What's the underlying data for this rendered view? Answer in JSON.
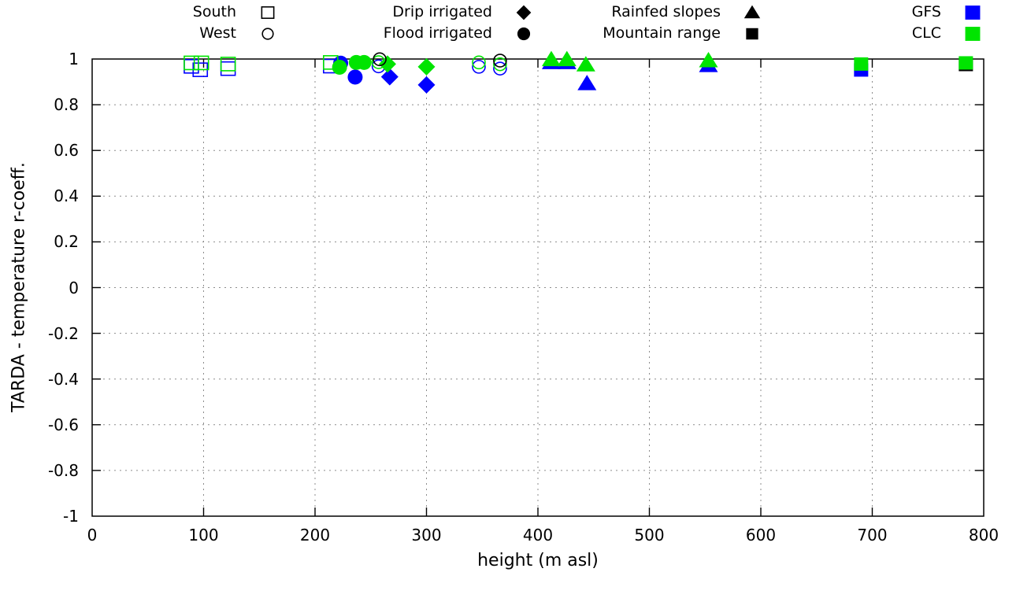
{
  "legend": {
    "columns": [
      {
        "rows": [
          {
            "label": "South",
            "marker": "square-open",
            "color": "#000000"
          },
          {
            "label": "West",
            "marker": "circle-open",
            "color": "#000000"
          }
        ]
      },
      {
        "rows": [
          {
            "label": "Drip irrigated",
            "marker": "diamond-filled",
            "color": "#000000"
          },
          {
            "label": "Flood irrigated",
            "marker": "circle-filled",
            "color": "#000000"
          }
        ]
      },
      {
        "rows": [
          {
            "label": "Rainfed slopes",
            "marker": "triangle-filled",
            "color": "#000000"
          },
          {
            "label": "Mountain range",
            "marker": "square-filled",
            "color": "#000000"
          }
        ]
      },
      {
        "rows": [
          {
            "label": "GFS",
            "marker": "square-filled",
            "color": "#0000ff"
          },
          {
            "label": "CLC",
            "marker": "square-filled",
            "color": "#00e400"
          }
        ]
      }
    ]
  },
  "chart_data": {
    "type": "scatter",
    "title": "",
    "xlabel": "height (m asl)",
    "ylabel": "TARDA - temperature r-coeff.",
    "xlim": [
      0,
      800
    ],
    "ylim": [
      -1,
      1
    ],
    "xticks": [
      0,
      100,
      200,
      300,
      400,
      500,
      600,
      700,
      800
    ],
    "yticks": [
      1,
      0.8,
      0.6,
      0.4,
      0.2,
      0,
      -0.2,
      -0.4,
      -0.6,
      -0.8,
      -1
    ],
    "ytick_labels": [
      "1",
      "0.8",
      "0.6",
      "0.4",
      "0.2",
      "0",
      "-0.2",
      "-0.4",
      "-0.6",
      "-0.8",
      "-1"
    ],
    "grid": true,
    "legend_position": "top",
    "colors": {
      "GFS": "#0000ff",
      "CLC": "#00e400",
      "overlap": "#000000"
    },
    "series": [
      {
        "name": "South",
        "marker": "square-open",
        "points": [
          {
            "x": 89,
            "y": 0.983,
            "model": "CLC"
          },
          {
            "x": 98,
            "y": 0.983,
            "model": "CLC"
          },
          {
            "x": 122,
            "y": 0.978,
            "model": "CLC"
          },
          {
            "x": 214,
            "y": 0.985,
            "model": "CLC"
          },
          {
            "x": 89,
            "y": 0.968,
            "model": "GFS"
          },
          {
            "x": 97,
            "y": 0.953,
            "model": "GFS"
          },
          {
            "x": 122,
            "y": 0.958,
            "model": "GFS"
          },
          {
            "x": 214,
            "y": 0.969,
            "model": "GFS"
          }
        ]
      },
      {
        "name": "West",
        "marker": "circle-open",
        "points": [
          {
            "x": 257,
            "y": 0.986,
            "model": "CLC"
          },
          {
            "x": 347,
            "y": 0.985,
            "model": "CLC"
          },
          {
            "x": 366,
            "y": 0.977,
            "model": "CLC"
          },
          {
            "x": 257,
            "y": 0.968,
            "model": "GFS"
          },
          {
            "x": 347,
            "y": 0.966,
            "model": "GFS"
          },
          {
            "x": 366,
            "y": 0.958,
            "model": "GFS"
          },
          {
            "x": 258,
            "y": 0.999,
            "model": "overlap",
            "z": 3
          },
          {
            "x": 366,
            "y": 0.993,
            "model": "overlap",
            "z": 3
          }
        ]
      },
      {
        "name": "Drip irrigated",
        "marker": "diamond-filled",
        "points": [
          {
            "x": 265,
            "y": 0.978,
            "model": "CLC"
          },
          {
            "x": 300,
            "y": 0.966,
            "model": "CLC"
          },
          {
            "x": 267,
            "y": 0.922,
            "model": "GFS"
          },
          {
            "x": 300,
            "y": 0.887,
            "model": "GFS"
          }
        ]
      },
      {
        "name": "Flood irrigated",
        "marker": "circle-filled",
        "points": [
          {
            "x": 222,
            "y": 0.964,
            "model": "CLC"
          },
          {
            "x": 237,
            "y": 0.985,
            "model": "CLC"
          },
          {
            "x": 244,
            "y": 0.985,
            "model": "CLC"
          },
          {
            "x": 223,
            "y": 0.982,
            "model": "GFS"
          },
          {
            "x": 236,
            "y": 0.921,
            "model": "GFS"
          }
        ]
      },
      {
        "name": "Rainfed slopes",
        "marker": "triangle-filled",
        "points": [
          {
            "x": 412,
            "y": 0.998,
            "model": "CLC"
          },
          {
            "x": 426,
            "y": 0.998,
            "model": "CLC"
          },
          {
            "x": 443,
            "y": 0.975,
            "model": "CLC"
          },
          {
            "x": 553,
            "y": 0.993,
            "model": "CLC"
          },
          {
            "x": 412,
            "y": 0.985,
            "model": "GFS"
          },
          {
            "x": 426,
            "y": 0.985,
            "model": "GFS"
          },
          {
            "x": 444,
            "y": 0.893,
            "model": "GFS"
          },
          {
            "x": 553,
            "y": 0.972,
            "model": "GFS"
          }
        ]
      },
      {
        "name": "Mountain range",
        "marker": "square-filled",
        "points": [
          {
            "x": 690,
            "y": 0.978,
            "model": "CLC"
          },
          {
            "x": 784,
            "y": 0.983,
            "model": "CLC"
          },
          {
            "x": 690,
            "y": 0.952,
            "model": "GFS"
          },
          {
            "x": 784,
            "y": 0.976,
            "model": "overlap",
            "z": 1.5
          }
        ]
      }
    ]
  }
}
